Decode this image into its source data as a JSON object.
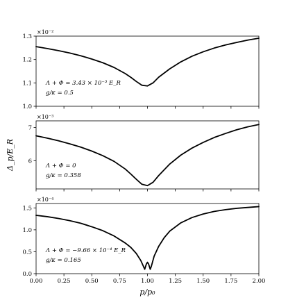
{
  "chart_data": [
    {
      "type": "line",
      "panel": "top",
      "multiplier": "×10⁻²",
      "ylim": [
        1.0,
        1.3
      ],
      "yticks": [
        "1.0",
        "1.1",
        "1.2",
        "1.3"
      ],
      "annotations": [
        "Λ + Φ = 3.43 × 10⁻³ E_R",
        "g/κ = 0.5"
      ],
      "series": [
        {
          "x": [
            0,
            0.1,
            0.2,
            0.3,
            0.4,
            0.5,
            0.6,
            0.7,
            0.8,
            0.85,
            0.9,
            0.95,
            1.0,
            1.05,
            1.1,
            1.2,
            1.3,
            1.4,
            1.5,
            1.6,
            1.7,
            1.8,
            1.9,
            2.0
          ],
          "y": [
            1.255,
            1.247,
            1.238,
            1.228,
            1.216,
            1.202,
            1.186,
            1.166,
            1.14,
            1.124,
            1.106,
            1.09,
            1.087,
            1.1,
            1.124,
            1.16,
            1.19,
            1.214,
            1.233,
            1.249,
            1.262,
            1.273,
            1.283,
            1.291
          ]
        }
      ]
    },
    {
      "type": "line",
      "panel": "middle",
      "multiplier": "×10⁻³",
      "ylim": [
        5.15,
        7.2
      ],
      "yticks": [
        "6",
        "7"
      ],
      "annotations": [
        "Λ + Φ = 0",
        "g/κ = 0.358"
      ],
      "series": [
        {
          "x": [
            0,
            0.1,
            0.2,
            0.3,
            0.4,
            0.5,
            0.6,
            0.7,
            0.8,
            0.85,
            0.9,
            0.95,
            1.0,
            1.05,
            1.1,
            1.2,
            1.3,
            1.4,
            1.5,
            1.6,
            1.7,
            1.8,
            1.9,
            2.0
          ],
          "y": [
            6.75,
            6.68,
            6.6,
            6.51,
            6.41,
            6.29,
            6.15,
            5.98,
            5.75,
            5.6,
            5.44,
            5.29,
            5.25,
            5.35,
            5.55,
            5.9,
            6.17,
            6.38,
            6.55,
            6.7,
            6.82,
            6.93,
            7.02,
            7.09
          ]
        }
      ]
    },
    {
      "type": "line",
      "panel": "bottom",
      "multiplier": "×10⁻⁴",
      "ylim": [
        0.0,
        1.6
      ],
      "yticks": [
        "0.0",
        "0.5",
        "1.0",
        "1.5"
      ],
      "xticks": [
        "0.00",
        "0.25",
        "0.50",
        "0.75",
        "1.00",
        "1.25",
        "1.50",
        "1.75",
        "2.00"
      ],
      "xlim": [
        0.0,
        2.0
      ],
      "xlabel": "p/p₀",
      "annotations": [
        "Λ + Φ = −9.66 × 10⁻⁴ E_R",
        "g/κ = 0.165"
      ],
      "series": [
        {
          "x": [
            0,
            0.1,
            0.2,
            0.3,
            0.4,
            0.5,
            0.6,
            0.7,
            0.8,
            0.85,
            0.9,
            0.94,
            0.965,
            0.975,
            0.99,
            1.0,
            1.01,
            1.025,
            1.035,
            1.06,
            1.1,
            1.15,
            1.2,
            1.3,
            1.4,
            1.5,
            1.6,
            1.7,
            1.8,
            1.9,
            2.0
          ],
          "y": [
            1.33,
            1.3,
            1.26,
            1.21,
            1.15,
            1.07,
            0.98,
            0.86,
            0.7,
            0.6,
            0.46,
            0.3,
            0.16,
            0.1,
            0.22,
            0.26,
            0.22,
            0.1,
            0.17,
            0.4,
            0.62,
            0.82,
            0.97,
            1.16,
            1.28,
            1.36,
            1.42,
            1.46,
            1.49,
            1.51,
            1.53
          ]
        }
      ]
    }
  ],
  "shared": {
    "ylabel": "Δ_p/E_R"
  }
}
